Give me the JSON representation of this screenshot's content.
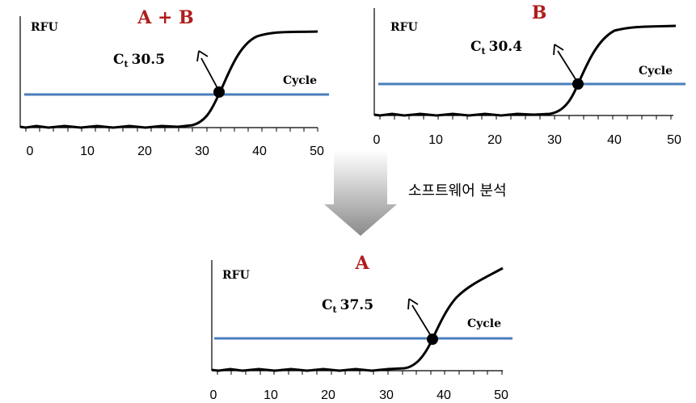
{
  "caption": "소프트웨어 분석",
  "panels": [
    {
      "title": "A + B",
      "ylabel": "RFU",
      "xlabel": "Cycle",
      "ct_sub": "t",
      "ct_value": "30.5",
      "x_ticks": [
        "0",
        "10",
        "20",
        "30",
        "40",
        "50"
      ]
    },
    {
      "title": "B",
      "ylabel": "RFU",
      "xlabel": "Cycle",
      "ct_sub": "t",
      "ct_value": "30.4",
      "x_ticks": [
        "0",
        "10",
        "20",
        "30",
        "40",
        "50"
      ]
    },
    {
      "title": "A",
      "ylabel": "RFU",
      "xlabel": "Cycle",
      "ct_sub": "t",
      "ct_value": "37.5",
      "x_ticks": [
        "0",
        "10",
        "20",
        "30",
        "40",
        "50"
      ]
    }
  ],
  "chart_data": [
    {
      "type": "line",
      "title": "A + B",
      "ylabel": "RFU",
      "xlabel": "Cycle",
      "xlim": [
        0,
        50
      ],
      "threshold_color": "#4a7ebb",
      "curve_color": "#000000",
      "sigmoid_midpoint": 36,
      "threshold_crossing_cycle": 34,
      "ct_annotation": "30.5",
      "series": [
        {
          "name": "",
          "x": [
            1,
            5,
            10,
            15,
            20,
            25,
            28,
            30,
            32,
            34,
            36,
            38,
            40,
            42,
            44,
            46,
            50
          ],
          "y": [
            0.02,
            0.02,
            0.02,
            0.02,
            0.02,
            0.02,
            0.03,
            0.06,
            0.15,
            0.32,
            0.53,
            0.74,
            0.88,
            0.95,
            0.98,
            0.99,
            1.0
          ]
        }
      ]
    },
    {
      "type": "line",
      "title": "B",
      "ylabel": "RFU",
      "xlabel": "Cycle",
      "xlim": [
        0,
        50
      ],
      "threshold_color": "#4a7ebb",
      "curve_color": "#000000",
      "sigmoid_midpoint": 36.5,
      "threshold_crossing_cycle": 34,
      "ct_annotation": "30.4",
      "series": [
        {
          "name": "",
          "x": [
            1,
            5,
            10,
            15,
            20,
            25,
            28,
            30,
            32,
            34,
            36,
            38,
            40,
            42,
            44,
            46,
            50
          ],
          "y": [
            0.02,
            0.02,
            0.02,
            0.02,
            0.02,
            0.02,
            0.03,
            0.05,
            0.12,
            0.28,
            0.5,
            0.72,
            0.87,
            0.94,
            0.98,
            0.99,
            1.0
          ]
        }
      ]
    },
    {
      "type": "line",
      "title": "A",
      "ylabel": "RFU",
      "xlabel": "Cycle",
      "xlim": [
        0,
        50
      ],
      "threshold_color": "#4a7ebb",
      "curve_color": "#000000",
      "sigmoid_midpoint": 40.5,
      "threshold_crossing_cycle": 38,
      "ct_annotation": "37.5",
      "series": [
        {
          "name": "",
          "x": [
            1,
            5,
            10,
            15,
            20,
            25,
            30,
            33,
            35,
            37,
            39,
            41,
            43,
            45,
            47,
            50
          ],
          "y": [
            0.02,
            0.02,
            0.02,
            0.02,
            0.02,
            0.02,
            0.03,
            0.06,
            0.14,
            0.28,
            0.47,
            0.63,
            0.76,
            0.86,
            0.93,
            1.0
          ]
        }
      ]
    }
  ]
}
